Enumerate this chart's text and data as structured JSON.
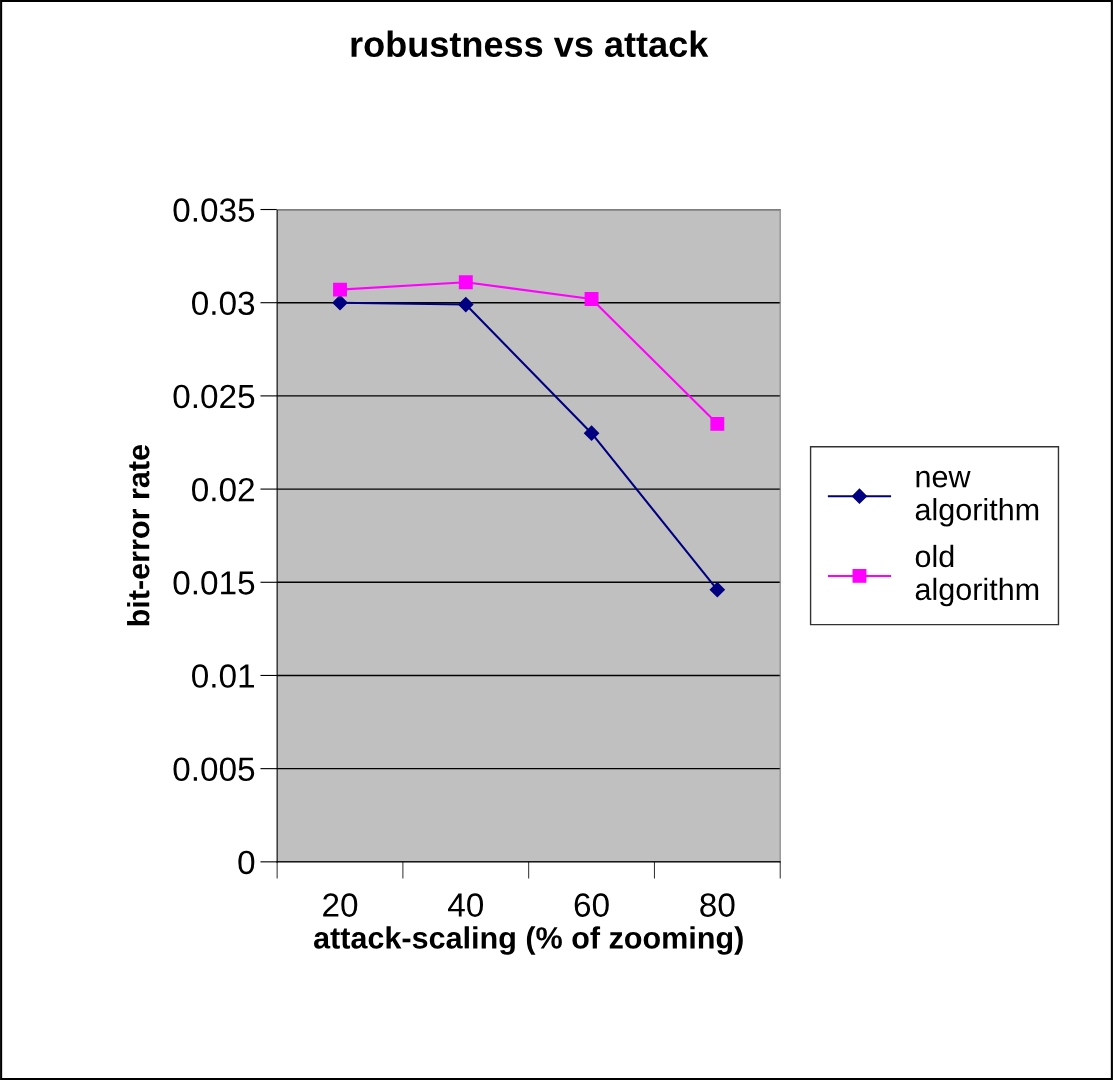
{
  "chart_data": {
    "type": "line",
    "title": "robustness vs attack",
    "xlabel": "attack-scaling (% of zooming)",
    "ylabel": "bit-error rate",
    "categories": [
      "20",
      "40",
      "60",
      "80"
    ],
    "series": [
      {
        "name": "new algorithm",
        "color": "#000080",
        "marker": "diamond",
        "values": [
          0.03,
          0.0299,
          0.023,
          0.0146
        ]
      },
      {
        "name": "old algorithm",
        "color": "#ff00ff",
        "marker": "square",
        "values": [
          0.0307,
          0.0311,
          0.0302,
          0.0235
        ]
      }
    ],
    "ylim": [
      0,
      0.035
    ],
    "yticks": [
      0,
      0.005,
      0.01,
      0.015,
      0.02,
      0.025,
      0.03,
      0.035
    ],
    "grid": "y",
    "legend": "right"
  }
}
